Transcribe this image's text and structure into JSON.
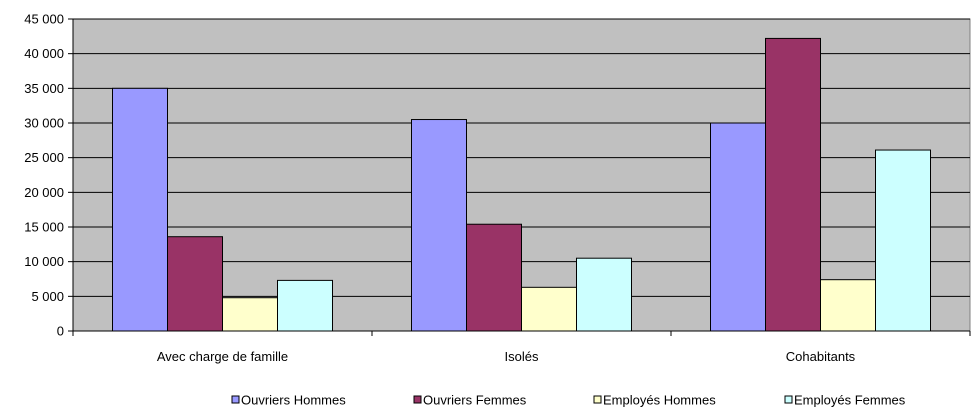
{
  "chart_data": {
    "type": "bar",
    "categories": [
      "Avec charge de famille",
      "Isolés",
      "Cohabitants"
    ],
    "series": [
      {
        "name": "Ouvriers Hommes",
        "color": "#9999ff",
        "values": [
          35000,
          30500,
          30000
        ]
      },
      {
        "name": "Ouvriers Femmes",
        "color": "#993366",
        "values": [
          13600,
          15400,
          42200
        ]
      },
      {
        "name": "Employés Hommes",
        "color": "#ffffcc",
        "values": [
          4800,
          6300,
          7400
        ]
      },
      {
        "name": "Employés Femmes",
        "color": "#ccffff",
        "values": [
          7300,
          10500,
          26100
        ]
      }
    ],
    "ylim": [
      0,
      45000
    ],
    "yticks": [
      0,
      5000,
      10000,
      15000,
      20000,
      25000,
      30000,
      35000,
      40000,
      45000
    ],
    "ytick_labels": [
      "0",
      "5 000",
      "10 000",
      "15 000",
      "20 000",
      "25 000",
      "30 000",
      "35 000",
      "40 000",
      "45 000"
    ],
    "title": "",
    "xlabel": "",
    "ylabel": "",
    "plot_background": "#c0c0c0",
    "grid": "horizontal",
    "legend_position": "bottom"
  }
}
